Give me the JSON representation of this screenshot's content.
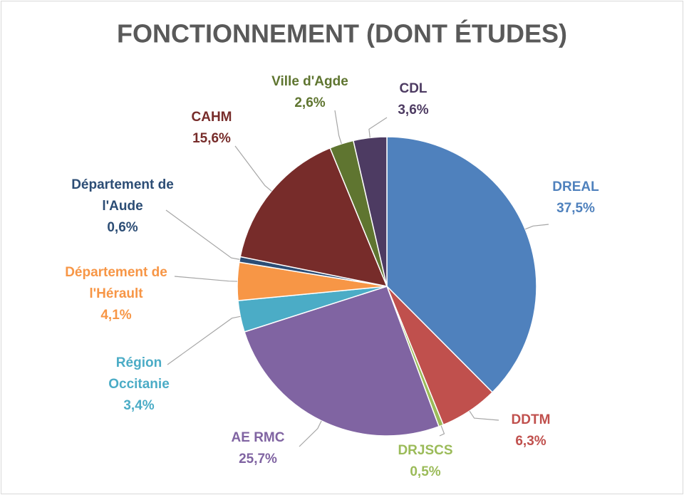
{
  "chart_data": {
    "type": "pie",
    "title": "FONCTIONNEMENT (DONT ÉTUDES)",
    "categories": [
      "DREAL",
      "DDTM",
      "DRJSCS",
      "AE RMC",
      "Région Occitanie",
      "Département de l'Hérault",
      "Département de l'Aude",
      "CAHM",
      "Ville d'Agde",
      "CDL"
    ],
    "values": [
      37.5,
      6.3,
      0.5,
      25.7,
      3.4,
      4.1,
      0.6,
      15.6,
      2.6,
      3.6
    ],
    "value_labels": [
      "37,5%",
      "6,3%",
      "0,5%",
      "25,7%",
      "3,4%",
      "4,1%",
      "0,6%",
      "15,6%",
      "2,6%",
      "3,6%"
    ],
    "colors": [
      "#4f81bd",
      "#c0504d",
      "#9bbb59",
      "#8064a2",
      "#4bacc6",
      "#f79646",
      "#2c4d75",
      "#772c2a",
      "#5f7530",
      "#4d3b62"
    ]
  }
}
